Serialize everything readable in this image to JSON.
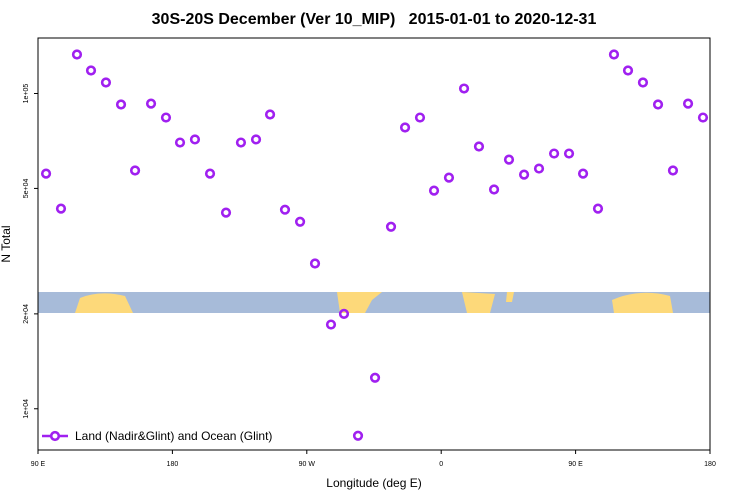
{
  "chart_data": {
    "type": "scatter",
    "title": "30S-20S December (Ver 10_MIP)   2015-01-01 to 2020-12-31",
    "x_label": "Longitude (deg E)",
    "y_label": "N Total",
    "xlim": [
      90,
      540
    ],
    "xticks": [
      {
        "value": 90,
        "label": "90 E"
      },
      {
        "value": 180,
        "label": "180"
      },
      {
        "value": 270,
        "label": "90 W"
      },
      {
        "value": 360,
        "label": "0"
      },
      {
        "value": 450,
        "label": "90 E"
      },
      {
        "value": 540,
        "label": "180"
      }
    ],
    "ylim": [
      7400,
      150000
    ],
    "y_scale": "log",
    "yticks": [
      {
        "value": 10000,
        "label": "1e+04"
      },
      {
        "value": 20000,
        "label": "2e+04"
      },
      {
        "value": 50000,
        "label": "5e+04"
      },
      {
        "value": 100000,
        "label": "1e+05"
      }
    ],
    "legend": "lower left",
    "series": [
      {
        "name": "Land (Nadir&Glint) and Ocean (Glint)",
        "color": "#a020f0",
        "x": [
          95.4,
          105.4,
          116.1,
          125.5,
          135.5,
          145.6,
          155,
          165.7,
          175.7,
          185.1,
          195.1,
          205.2,
          215.9,
          225.9,
          236,
          245.4,
          255.4,
          265.5,
          275.5,
          286.2,
          294.9,
          304.3,
          315.7,
          326.4,
          335.8,
          345.8,
          355.2,
          365.2,
          375.3,
          385.3,
          395.4,
          405.4,
          415.5,
          425.5,
          435.6,
          445.6,
          455,
          465,
          475.7,
          485.1,
          495.1,
          505.2,
          515.2,
          525.3,
          535.3
        ],
        "values": [
          55700,
          43150,
          133000,
          118300,
          108400,
          92300,
          57000,
          92900,
          83900,
          69900,
          71500,
          55700,
          41900,
          69900,
          71500,
          85800,
          42800,
          39200,
          28900,
          18500,
          20000,
          8210,
          12540,
          37800,
          78000,
          83900,
          49200,
          54100,
          103700,
          67900,
          49600,
          61700,
          55300,
          57800,
          64500,
          64500,
          55700,
          43150,
          133000,
          118300,
          108400,
          92300,
          57000,
          92900,
          83900
        ]
      }
    ]
  }
}
